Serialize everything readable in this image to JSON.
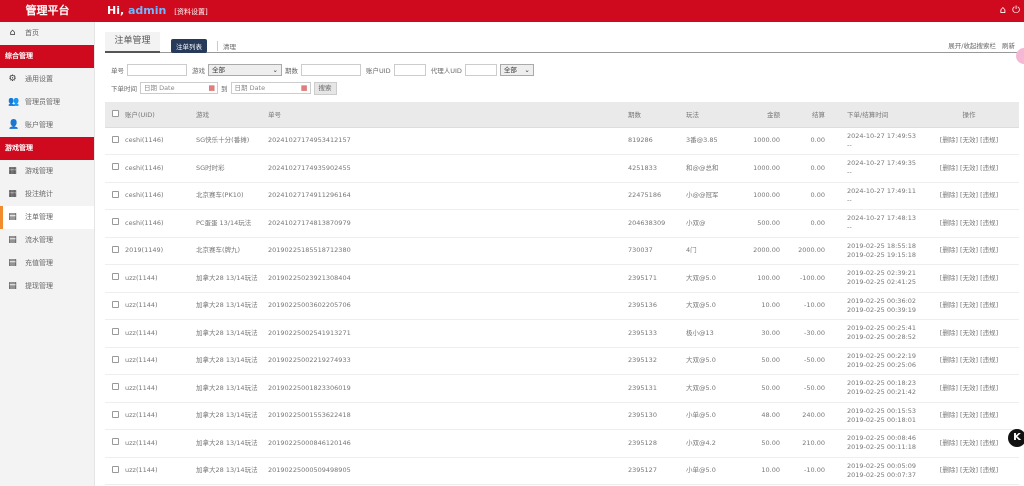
{
  "header": {
    "brand": "管理平台",
    "greeting": "Hi,",
    "user": "admin",
    "profile_link": "[资料设置]",
    "icons": [
      "home-icon",
      "power-icon"
    ]
  },
  "sidebar": {
    "items": [
      {
        "type": "item",
        "label": "首页",
        "icon": "⌂",
        "name": "home"
      },
      {
        "type": "group",
        "label": "综合管理"
      },
      {
        "type": "item",
        "label": "通用设置",
        "icon": "⚙",
        "name": "general-settings"
      },
      {
        "type": "item",
        "label": "管理员管理",
        "icon": "👥",
        "name": "admin-manage"
      },
      {
        "type": "item",
        "label": "账户管理",
        "icon": "👤",
        "name": "account-manage"
      },
      {
        "type": "group",
        "label": "游戏管理"
      },
      {
        "type": "item",
        "label": "游戏管理",
        "icon": "▦",
        "name": "game-manage"
      },
      {
        "type": "item",
        "label": "投注统计",
        "icon": "▦",
        "name": "bet-stats"
      },
      {
        "type": "item",
        "label": "注单管理",
        "icon": "▤",
        "name": "order-manage",
        "active": true
      },
      {
        "type": "item",
        "label": "流水管理",
        "icon": "▤",
        "name": "flow-manage"
      },
      {
        "type": "item",
        "label": "充值管理",
        "icon": "▤",
        "name": "recharge-manage"
      },
      {
        "type": "item",
        "label": "提现管理",
        "icon": "▤",
        "name": "withdraw-manage"
      }
    ]
  },
  "tabs": {
    "main": "注单管理",
    "list": "注单列表",
    "clean": "清理",
    "toggle_search": "展开/收起搜索栏",
    "refresh": "刷新"
  },
  "filters": {
    "order_no": "单号",
    "game": "游戏",
    "game_value": "全部",
    "period": "期数",
    "account_uid": "账户UID",
    "agent_uid": "代理人UID",
    "status_value": "全部",
    "order_time": "下单时间",
    "date_placeholder": "日期 Date",
    "to": "到",
    "search": "搜索"
  },
  "table": {
    "headers": [
      "账户(UID)",
      "游戏",
      "单号",
      "期数",
      "玩法",
      "金额",
      "结算",
      "下单/结算时间",
      "操作"
    ],
    "actions": [
      "[删除]",
      "[无效]",
      "[违规]"
    ],
    "rows": [
      [
        "ceshi(1146)",
        "SG快乐十分(番摊)",
        "20241027174953412157",
        "819286",
        "3番@3.85",
        "1000.00",
        "0.00",
        "2024-10-27 17:49:53",
        "--"
      ],
      [
        "ceshi(1146)",
        "SG时时彩",
        "20241027174935902455",
        "4251833",
        "和@@总和",
        "1000.00",
        "0.00",
        "2024-10-27 17:49:35",
        "--"
      ],
      [
        "ceshi(1146)",
        "北京赛车(PK10)",
        "20241027174911296164",
        "22475186",
        "小@@冠军",
        "1000.00",
        "0.00",
        "2024-10-27 17:49:11",
        "--"
      ],
      [
        "ceshi(1146)",
        "PC蛋蛋 13/14玩法",
        "20241027174813870979",
        "204638309",
        "小双@",
        "500.00",
        "0.00",
        "2024-10-27 17:48:13",
        "--"
      ],
      [
        "2019(1149)",
        "北京赛车(牌九)",
        "20190225185518712380",
        "730037",
        "4门",
        "2000.00",
        "2000.00",
        "2019-02-25 18:55:18",
        "2019-02-25 19:15:18"
      ],
      [
        "uzz(1144)",
        "加拿大28 13/14玩法",
        "20190225023921308404",
        "2395171",
        "大双@5.0",
        "100.00",
        "-100.00",
        "2019-02-25 02:39:21",
        "2019-02-25 02:41:25"
      ],
      [
        "uzz(1144)",
        "加拿大28 13/14玩法",
        "20190225003602205706",
        "2395136",
        "大双@5.0",
        "10.00",
        "-10.00",
        "2019-02-25 00:36:02",
        "2019-02-25 00:39:19"
      ],
      [
        "uzz(1144)",
        "加拿大28 13/14玩法",
        "20190225002541913271",
        "2395133",
        "极小@13",
        "30.00",
        "-30.00",
        "2019-02-25 00:25:41",
        "2019-02-25 00:28:52"
      ],
      [
        "uzz(1144)",
        "加拿大28 13/14玩法",
        "20190225002219274933",
        "2395132",
        "大双@5.0",
        "50.00",
        "-50.00",
        "2019-02-25 00:22:19",
        "2019-02-25 00:25:06"
      ],
      [
        "uzz(1144)",
        "加拿大28 13/14玩法",
        "20190225001823306019",
        "2395131",
        "大双@5.0",
        "50.00",
        "-50.00",
        "2019-02-25 00:18:23",
        "2019-02-25 00:21:42"
      ],
      [
        "uzz(1144)",
        "加拿大28 13/14玩法",
        "20190225001553622418",
        "2395130",
        "小单@5.0",
        "48.00",
        "240.00",
        "2019-02-25 00:15:53",
        "2019-02-25 00:18:01"
      ],
      [
        "uzz(1144)",
        "加拿大28 13/14玩法",
        "20190225000846120146",
        "2395128",
        "小双@4.2",
        "50.00",
        "210.00",
        "2019-02-25 00:08:46",
        "2019-02-25 00:11:18"
      ],
      [
        "uzz(1144)",
        "加拿大28 13/14玩法",
        "20190225000509498905",
        "2395127",
        "小单@5.0",
        "10.00",
        "-10.00",
        "2019-02-25 00:05:09",
        "2019-02-25 00:07:37"
      ]
    ]
  },
  "floating": {
    "badge": "K"
  }
}
